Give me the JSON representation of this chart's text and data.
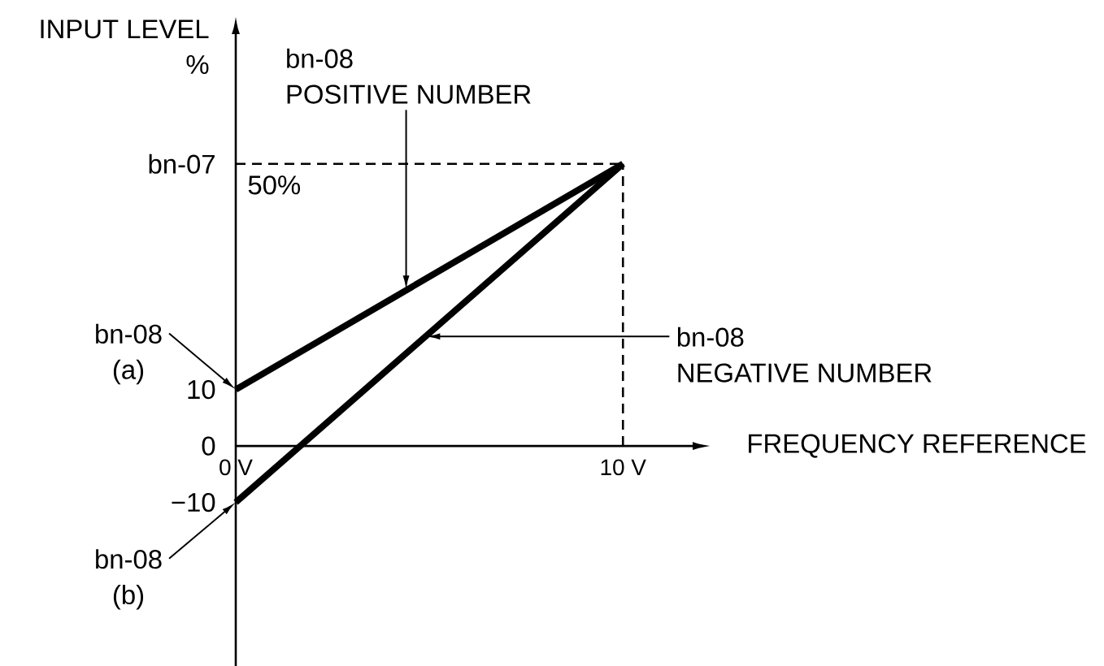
{
  "chart_data": {
    "type": "line",
    "xlabel": "FREQUENCY REFERENCE",
    "ylabel": "INPUT LEVEL %",
    "x": [
      0,
      10
    ],
    "series": [
      {
        "color": "#000000",
        "values": [
          10,
          50
        ]
      },
      {
        "color": "#000000",
        "values": [
          -10,
          50
        ]
      }
    ],
    "xlim": [
      0,
      11.8
    ],
    "ylim": [
      -39,
      73
    ],
    "xticks": [
      {
        "value": 0,
        "label": "0 V"
      },
      {
        "value": 10,
        "label": "10 V"
      }
    ],
    "yticks": [
      {
        "value": -10,
        "label": "−10"
      },
      0,
      10,
      {
        "value": 50,
        "label": "bn-07"
      }
    ],
    "ref_lines": [
      {
        "axis": "y",
        "value": 50,
        "label": "50%",
        "color": "#000000",
        "line_style": "dashed"
      },
      {
        "axis": "x",
        "value": 10,
        "color": "#000000",
        "line_style": "dashed"
      }
    ],
    "annotations": [
      {
        "text": "bn-08 POSITIVE NUMBER",
        "x": 4.4,
        "y": 27.6
      },
      {
        "text": "bn-08 NEGATIVE NUMBER",
        "x": 4.9,
        "y": 19.4
      },
      {
        "text": "bn-08 (a)",
        "x": 0,
        "y": 10
      },
      {
        "text": "bn-08 (b)",
        "x": 0,
        "y": -10
      }
    ]
  }
}
